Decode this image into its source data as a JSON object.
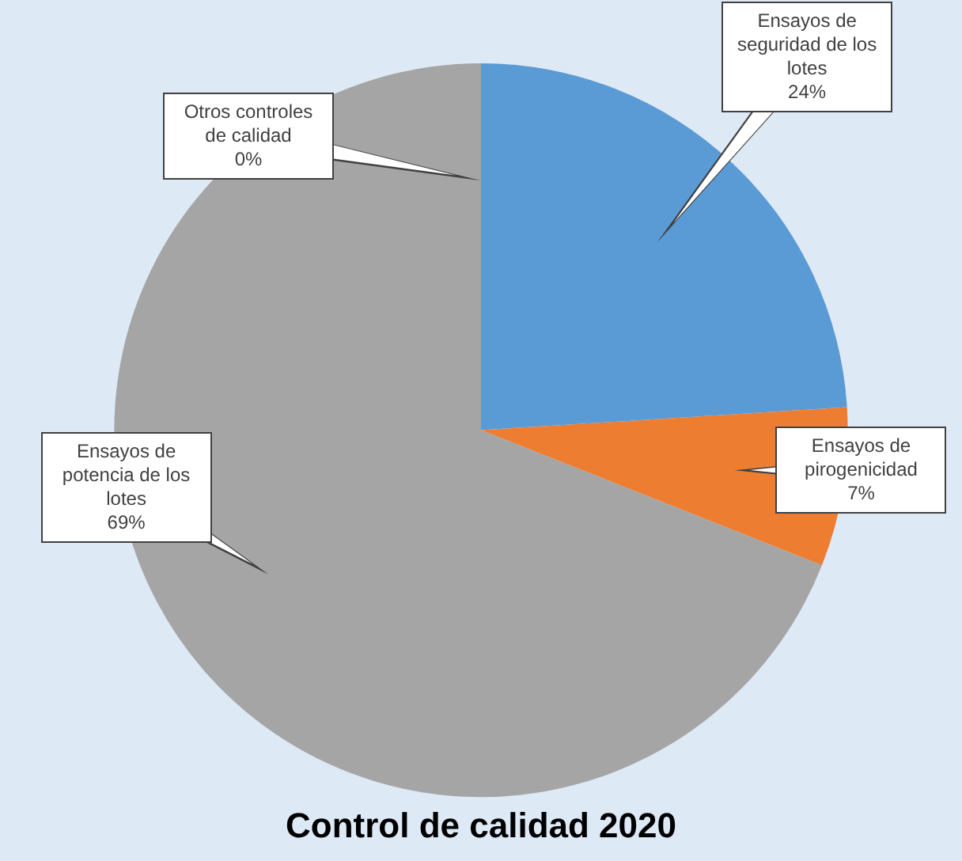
{
  "chart_data": {
    "type": "pie",
    "title": "Control de calidad 2020",
    "categories": [
      "Ensayos de seguridad de los lotes",
      "Ensayos de pirogenicidad",
      "Ensayos de potencia de los lotes",
      "Otros controles de calidad"
    ],
    "values": [
      24,
      7,
      69,
      0
    ],
    "value_labels": [
      "24%",
      "7%",
      "69%",
      "0%"
    ],
    "colors": [
      "#5b9bd5",
      "#ed7d31",
      "#a5a5a5",
      "#ffc000"
    ],
    "legend": false
  }
}
